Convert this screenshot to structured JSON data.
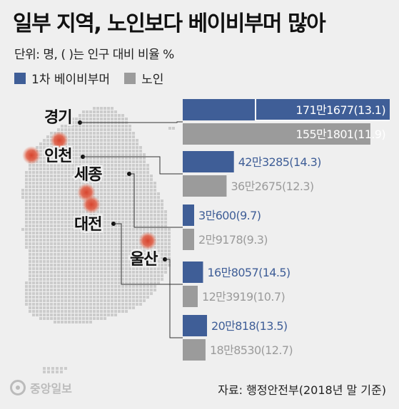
{
  "header": {
    "title": "일부 지역, 노인보다 베이비부머 많아",
    "subtitle": "단위: 명, ( )는 인구 대비 비율 %"
  },
  "legend": {
    "boomer": "1차 베이비부머",
    "elderly": "노인"
  },
  "colors": {
    "boomer": "#3f5e97",
    "elderly": "#9b9b9b",
    "background": "#efefef",
    "map": "#cccccc",
    "marker": "#d8442d"
  },
  "footer": {
    "logo_text": "중앙일보",
    "source": "자료: 행정안전부(2018년 말 기준)"
  },
  "chart_data": {
    "type": "bar",
    "orientation": "horizontal",
    "categories": [
      "경기",
      "인천",
      "세종",
      "대전",
      "울산"
    ],
    "series": [
      {
        "name": "1차 베이비부머",
        "values": [
          1711677,
          423285,
          30600,
          168057,
          200818
        ],
        "labels": [
          "171만1677(13.1)",
          "42만3285(14.3)",
          "3만600(9.7)",
          "16만8057(14.5)",
          "20만818(13.5)"
        ]
      },
      {
        "name": "노인",
        "values": [
          1551801,
          362675,
          29178,
          123919,
          188530
        ],
        "labels": [
          "155만1801(11.9)",
          "36만2675(12.3)",
          "2만9178(9.3)",
          "12만3919(10.7)",
          "18만8530(12.7)"
        ]
      }
    ],
    "legend_position": "top-left",
    "grid": false
  }
}
